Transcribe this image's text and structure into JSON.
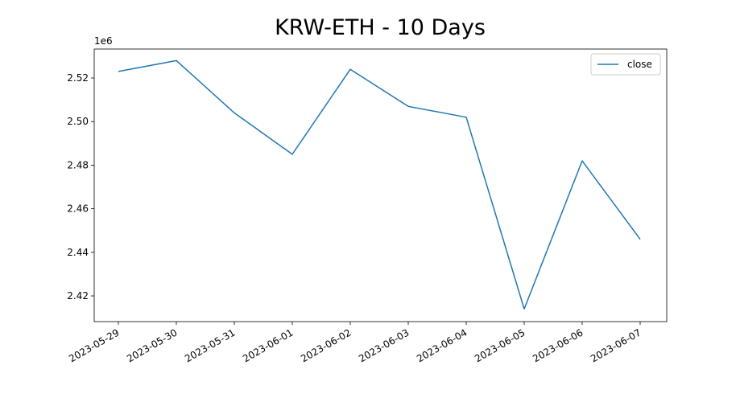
{
  "chart_data": {
    "type": "line",
    "title": "KRW-ETH - 10 Days",
    "x": [
      "2023-05-29",
      "2023-05-30",
      "2023-05-31",
      "2023-06-01",
      "2023-06-02",
      "2023-06-03",
      "2023-06-04",
      "2023-06-05",
      "2023-06-06",
      "2023-06-07"
    ],
    "series": [
      {
        "name": "close",
        "color": "#1f77b4",
        "values": [
          2523000,
          2528000,
          2504000,
          2485000,
          2524000,
          2507000,
          2502000,
          2414000,
          2482000,
          2446000
        ]
      }
    ],
    "xlim": [
      "2023-05-29",
      "2023-06-07"
    ],
    "xticks": [
      "2023-05-29",
      "2023-05-30",
      "2023-05-31",
      "2023-06-01",
      "2023-06-02",
      "2023-06-03",
      "2023-06-04",
      "2023-06-05",
      "2023-06-06",
      "2023-06-07"
    ],
    "ylim": [
      2408200,
      2533300
    ],
    "yticks": [
      {
        "value": 2420000,
        "label": "2.42"
      },
      {
        "value": 2440000,
        "label": "2.44"
      },
      {
        "value": 2460000,
        "label": "2.46"
      },
      {
        "value": 2480000,
        "label": "2.48"
      },
      {
        "value": 2500000,
        "label": "2.50"
      },
      {
        "value": 2520000,
        "label": "2.52"
      }
    ],
    "y_offset_label": "1e6",
    "legend": "upper right",
    "grid": false
  }
}
